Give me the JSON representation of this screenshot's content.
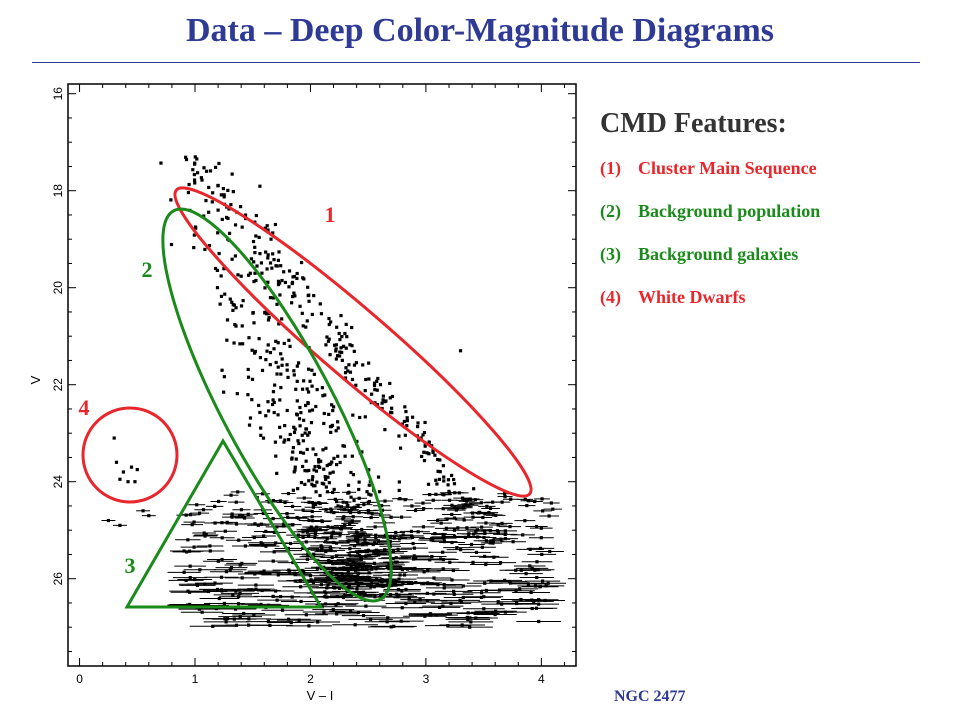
{
  "slide": {
    "title": "Data – Deep Color-Magnitude Diagrams",
    "caption": "NGC 2477"
  },
  "legend": {
    "title": "CMD Features:",
    "items": [
      {
        "num": "(1)",
        "label": "Cluster Main Sequence",
        "color": "#e8262b"
      },
      {
        "num": "(2)",
        "label": "Background population",
        "color": "#1a8a1a"
      },
      {
        "num": "(3)",
        "label": "Background galaxies",
        "color": "#1a8a1a"
      },
      {
        "num": "(4)",
        "label": "White Dwarfs",
        "color": "#e8262b"
      }
    ]
  },
  "colors": {
    "title": "#2e3a94",
    "red": "#e8262b",
    "green": "#1a8a1a",
    "points": "#000000"
  },
  "chart_data": {
    "type": "scatter",
    "title": "",
    "xlabel": "V – I",
    "ylabel": "V",
    "xlim": [
      -0.1,
      4.3
    ],
    "ylim": [
      27.8,
      15.8
    ],
    "xticks": [
      "0",
      "1",
      "2",
      "3",
      "4"
    ],
    "yticks": [
      "16",
      "18",
      "20",
      "22",
      "24",
      "26"
    ],
    "region_labels": [
      "1",
      "2",
      "3",
      "4"
    ],
    "note": "Approximately 1000 stars; main sequence from (1.0, 17.3) to (3.6, 25.3); faint population V 24–27 with error bars; white dwarfs near V–I 0.3–0.5, V 23–24"
  }
}
